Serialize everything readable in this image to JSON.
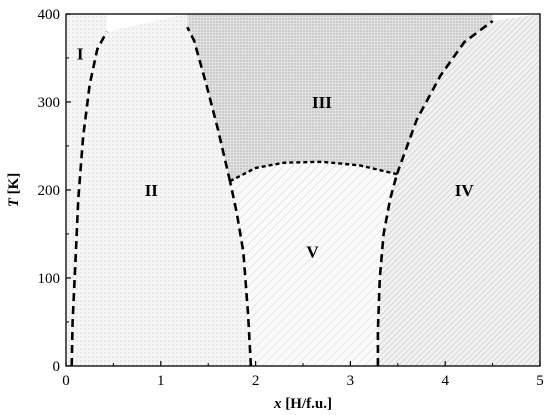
{
  "chart_data": {
    "type": "area",
    "title": "",
    "xlabel": {
      "var": "x",
      "unit": "[H/f.u.]"
    },
    "ylabel": {
      "var": "T",
      "unit": "[K]"
    },
    "xlim": [
      0,
      5
    ],
    "ylim": [
      0,
      400
    ],
    "x_ticks": [
      0,
      1,
      2,
      3,
      4,
      5
    ],
    "y_ticks": [
      0,
      100,
      200,
      300,
      400
    ],
    "grid": false,
    "legend": "none",
    "regions": [
      {
        "label": "I",
        "x": 0.15,
        "y": 355,
        "pattern": "dots-light"
      },
      {
        "label": "II",
        "x": 0.9,
        "y": 200,
        "pattern": "dots-light"
      },
      {
        "label": "III",
        "x": 2.7,
        "y": 300,
        "pattern": "dots-dense"
      },
      {
        "label": "IV",
        "x": 4.2,
        "y": 200,
        "pattern": "hatch-dense"
      },
      {
        "label": "V",
        "x": 2.6,
        "y": 130,
        "pattern": "hatch-light"
      }
    ],
    "boundaries": [
      {
        "name": "I-II",
        "style": "dashed",
        "points": [
          [
            0.06,
            0
          ],
          [
            0.07,
            50
          ],
          [
            0.1,
            120
          ],
          [
            0.13,
            190
          ],
          [
            0.18,
            260
          ],
          [
            0.25,
            320
          ],
          [
            0.33,
            360
          ],
          [
            0.43,
            380
          ]
        ]
      },
      {
        "name": "II-V",
        "style": "dashed",
        "points": [
          [
            1.95,
            0
          ],
          [
            1.92,
            60
          ],
          [
            1.87,
            130
          ],
          [
            1.8,
            175
          ],
          [
            1.73,
            210
          ]
        ]
      },
      {
        "name": "II-III",
        "style": "dashed",
        "points": [
          [
            1.73,
            210
          ],
          [
            1.6,
            270
          ],
          [
            1.48,
            320
          ],
          [
            1.35,
            370
          ],
          [
            1.28,
            385
          ]
        ]
      },
      {
        "name": "III-V",
        "style": "dotted",
        "points": [
          [
            1.73,
            210
          ],
          [
            2.0,
            225
          ],
          [
            2.3,
            231
          ],
          [
            2.7,
            232
          ],
          [
            3.1,
            228
          ],
          [
            3.49,
            218
          ]
        ]
      },
      {
        "name": "V-IV",
        "style": "dashed",
        "points": [
          [
            3.29,
            0
          ],
          [
            3.29,
            40
          ],
          [
            3.31,
            100
          ],
          [
            3.35,
            150
          ],
          [
            3.42,
            190
          ],
          [
            3.49,
            218
          ]
        ]
      },
      {
        "name": "III-IV",
        "style": "dashed",
        "points": [
          [
            3.49,
            218
          ],
          [
            3.7,
            280
          ],
          [
            3.95,
            330
          ],
          [
            4.2,
            368
          ],
          [
            4.5,
            392
          ]
        ]
      }
    ]
  }
}
